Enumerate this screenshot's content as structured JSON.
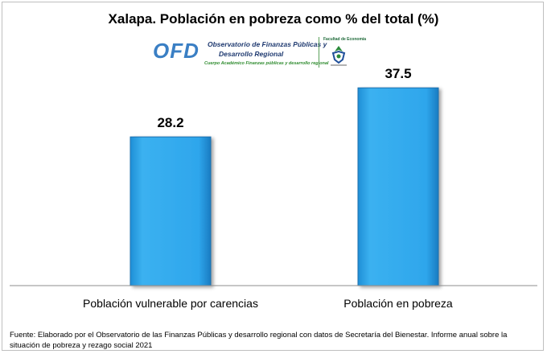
{
  "title": "Xalapa. Población en pobreza como % del total (%)",
  "logo": {
    "ofd": "OFD",
    "observatorio_line1": "Observatorio de Finanzas Públicas y",
    "observatorio_line2": "Desarrollo Regional",
    "cuerpo": "Cuerpo Académico  Finanzas públicas y desarrollo regional",
    "facultad": "Facultad de Economía"
  },
  "chart_data": {
    "type": "bar",
    "title": "Xalapa. Población en pobreza como % del total (%)",
    "categories": [
      "Población vulnerable por carencias",
      "Población en pobreza"
    ],
    "values": [
      28.2,
      37.5
    ],
    "value_labels": [
      "28.2",
      "37.5"
    ],
    "xlabel": "",
    "ylabel": "",
    "ylim": [
      0,
      45
    ],
    "grid": false,
    "bar_color": "#29a3e8",
    "bar_edge_color": "#1a6fae"
  },
  "source_text": "Fuente: Elaborado por el Observatorio de las Finanzas Públicas  y desarrollo regional con datos de Secretaría del Bienestar. Informe anual sobre la situación de pobreza y rezago social 2021"
}
